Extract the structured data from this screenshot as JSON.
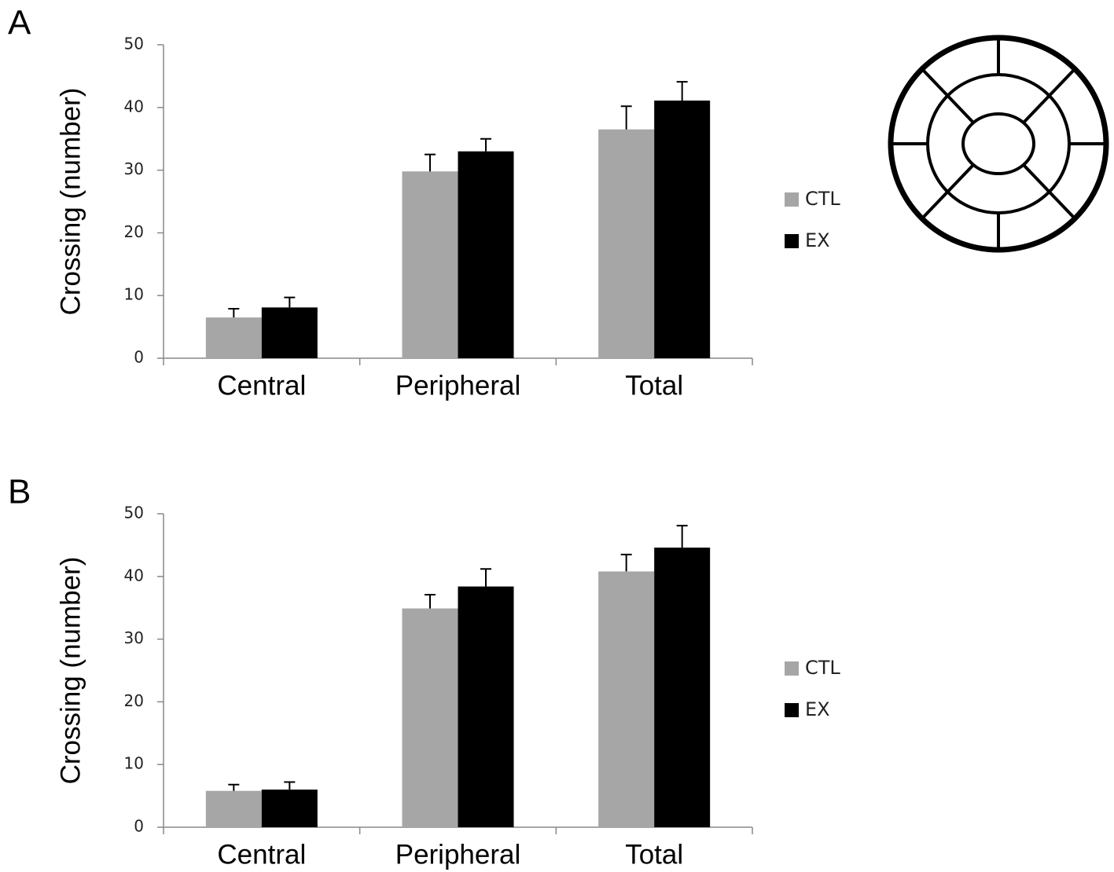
{
  "chart_data": [
    {
      "type": "bar",
      "panel_label": "A",
      "y_label": "Crossing (number)",
      "categories": [
        "Central",
        "Peripheral",
        "Total"
      ],
      "series": [
        {
          "name": "CTL",
          "color": "#a6a6a6",
          "values": [
            6.5,
            29.8,
            36.5
          ],
          "errors": [
            1.4,
            2.7,
            3.7
          ]
        },
        {
          "name": "EX",
          "color": "#000000",
          "values": [
            8.1,
            33.0,
            41.1
          ],
          "errors": [
            1.6,
            2.0,
            3.0
          ]
        }
      ],
      "ylim": [
        0,
        50
      ],
      "yticks": [
        0,
        10,
        20,
        30,
        40,
        50
      ]
    },
    {
      "type": "bar",
      "panel_label": "B",
      "y_label": "Crossing (number)",
      "categories": [
        "Central",
        "Peripheral",
        "Total"
      ],
      "series": [
        {
          "name": "CTL",
          "color": "#a6a6a6",
          "values": [
            5.8,
            34.9,
            40.8
          ],
          "errors": [
            1.0,
            2.2,
            2.7
          ]
        },
        {
          "name": "EX",
          "color": "#000000",
          "values": [
            6.0,
            38.4,
            44.6
          ],
          "errors": [
            1.2,
            2.8,
            3.5
          ]
        }
      ],
      "ylim": [
        0,
        50
      ],
      "yticks": [
        0,
        10,
        20,
        30,
        40,
        50
      ]
    }
  ]
}
